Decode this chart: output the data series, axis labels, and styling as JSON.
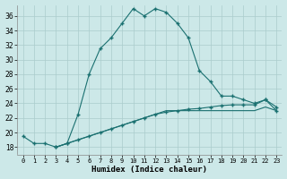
{
  "xlabel": "Humidex (Indice chaleur)",
  "bg_color": "#cce8e8",
  "grid_color": "#aacccc",
  "line_color": "#1a7070",
  "xlim": [
    -0.5,
    23.5
  ],
  "ylim": [
    17.0,
    37.5
  ],
  "xticks": [
    0,
    1,
    2,
    3,
    4,
    5,
    6,
    7,
    8,
    9,
    10,
    11,
    12,
    13,
    14,
    15,
    16,
    17,
    18,
    19,
    20,
    21,
    22,
    23
  ],
  "yticks": [
    18,
    20,
    22,
    24,
    26,
    28,
    30,
    32,
    34,
    36
  ],
  "curve1_x": [
    0,
    1,
    2,
    3,
    4,
    5,
    6,
    7,
    8,
    9,
    10,
    11,
    12,
    13,
    14,
    15,
    16,
    17,
    18,
    19,
    20,
    21,
    22,
    23
  ],
  "curve1_y": [
    19.5,
    18.5,
    18.5,
    18.0,
    18.5,
    22.5,
    28.0,
    31.5,
    33.0,
    35.0,
    37.0,
    36.0,
    37.0,
    36.5,
    35.0,
    33.0,
    28.5,
    27.0,
    25.0,
    25.0,
    24.5,
    24.0,
    24.5,
    23.5
  ],
  "curve2_x": [
    3,
    4,
    5,
    6,
    7,
    8,
    9,
    10,
    11,
    12,
    13,
    14,
    15,
    16,
    17,
    18,
    19,
    20,
    21,
    22,
    23
  ],
  "curve2_y": [
    18.0,
    18.5,
    19.0,
    19.5,
    20.0,
    20.5,
    21.0,
    21.5,
    22.0,
    22.5,
    22.8,
    23.0,
    23.2,
    23.3,
    23.5,
    23.7,
    23.8,
    23.8,
    23.8,
    24.5,
    23.0
  ],
  "curve3_x": [
    3,
    4,
    5,
    6,
    7,
    8,
    9,
    10,
    11,
    12,
    13,
    14,
    15,
    16,
    17,
    18,
    19,
    20,
    21,
    22,
    23
  ],
  "curve3_y": [
    18.0,
    18.5,
    19.0,
    19.5,
    20.0,
    20.5,
    21.0,
    21.5,
    22.0,
    22.5,
    23.0,
    23.0,
    23.0,
    23.0,
    23.0,
    23.0,
    23.0,
    23.0,
    23.0,
    23.5,
    23.0
  ]
}
